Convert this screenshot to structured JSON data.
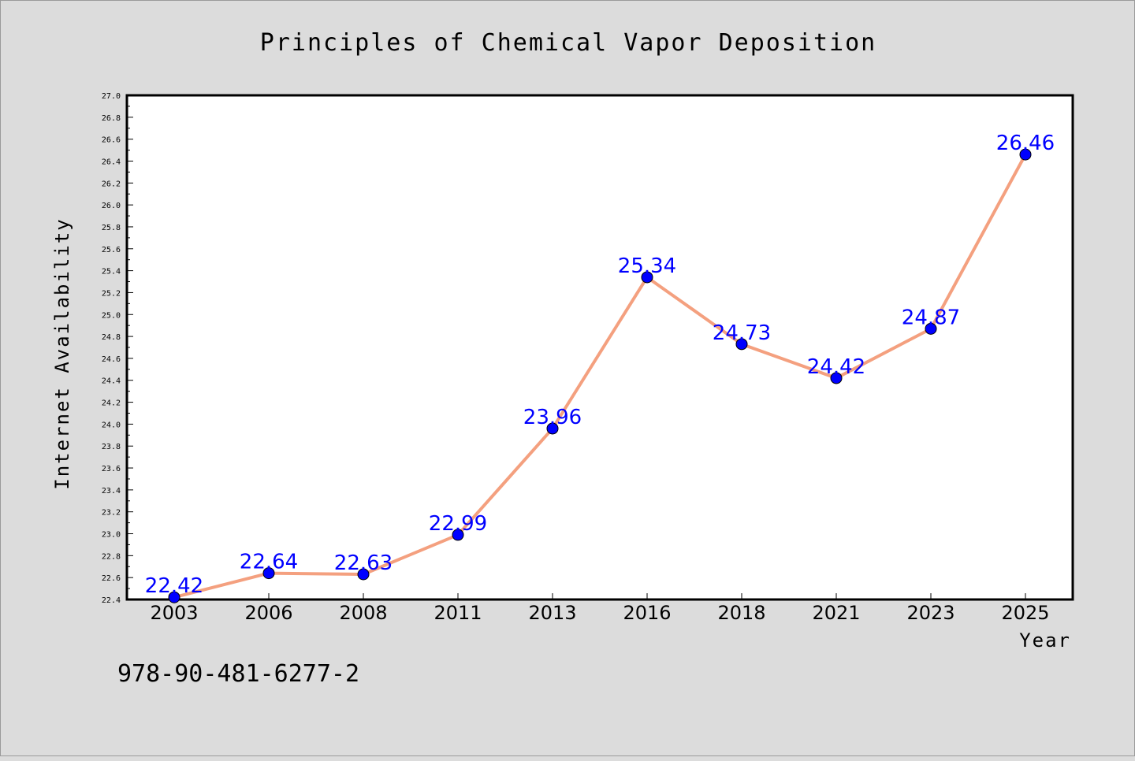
{
  "chart_data": {
    "type": "line",
    "title": "Principles of Chemical Vapor Deposition",
    "xlabel": "Year",
    "ylabel": "Internet Availability",
    "categories": [
      "2003",
      "2006",
      "2008",
      "2011",
      "2013",
      "2016",
      "2018",
      "2021",
      "2023",
      "2025"
    ],
    "series": [
      {
        "values": [
          22.42,
          22.64,
          22.63,
          22.99,
          23.96,
          25.34,
          24.73,
          24.42,
          24.87,
          26.46
        ]
      }
    ],
    "data_labels": [
      "22.42",
      "22.64",
      "22.63",
      "22.99",
      "23.96",
      "25.34",
      "24.73",
      "24.42",
      "24.87",
      "26.46"
    ],
    "ylim": [
      22.4,
      27.0
    ],
    "y_ticks": [
      "22.4",
      "22.6",
      "22.8",
      "23.0",
      "23.2",
      "23.4",
      "23.6",
      "23.8",
      "24.0",
      "24.2",
      "24.4",
      "24.6",
      "24.8",
      "25.0",
      "25.2",
      "25.4",
      "25.6",
      "25.8",
      "26.0",
      "26.2",
      "26.4",
      "26.6",
      "26.8",
      "27.0"
    ],
    "grid": false,
    "line_color": "#f4a07f",
    "marker_color": "#0000ff",
    "label_color": "#0000ff"
  },
  "footer_text": "978-90-481-6277-2"
}
